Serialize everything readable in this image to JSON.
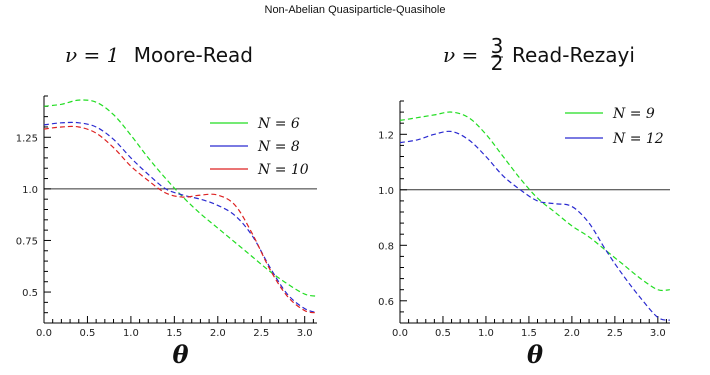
{
  "figure_title": "Non-Abelian Quasiparticle-Quasihole",
  "chart_data": [
    {
      "type": "line",
      "title": "ν = 1 Moore-Read",
      "title_math": "ν = 1",
      "title_text": "Moore-Read",
      "xlabel": "θ",
      "ylabel": "",
      "xlim": [
        0,
        3.14159
      ],
      "ylim": [
        0.35,
        1.45
      ],
      "xticks": [
        0.0,
        0.5,
        1.0,
        1.5,
        2.0,
        2.5,
        3.0
      ],
      "xtick_labels": [
        "0.0",
        "0.5",
        "1.0",
        "1.5",
        "2.0",
        "2.5",
        "3.0"
      ],
      "yticks": [
        0.5,
        0.75,
        1.0,
        1.25
      ],
      "ytick_labels": [
        "0.5",
        "0.75",
        "1.0",
        "1.25"
      ],
      "reference_line": 1.0,
      "legend_position": "top-right",
      "series": [
        {
          "name": "N = 6",
          "color": "#22dd22",
          "x": [
            0.0,
            0.2,
            0.4,
            0.6,
            0.8,
            1.0,
            1.2,
            1.4,
            1.6,
            1.8,
            2.0,
            2.2,
            2.4,
            2.6,
            2.8,
            3.0,
            3.14
          ],
          "y": [
            1.4,
            1.41,
            1.43,
            1.42,
            1.36,
            1.26,
            1.15,
            1.05,
            0.96,
            0.88,
            0.81,
            0.74,
            0.67,
            0.6,
            0.54,
            0.49,
            0.48
          ]
        },
        {
          "name": "N = 8",
          "color": "#2a2ad0",
          "x": [
            0.0,
            0.2,
            0.4,
            0.6,
            0.8,
            1.0,
            1.2,
            1.4,
            1.6,
            1.8,
            2.0,
            2.2,
            2.4,
            2.6,
            2.8,
            3.0,
            3.14
          ],
          "y": [
            1.31,
            1.32,
            1.32,
            1.3,
            1.24,
            1.15,
            1.07,
            1.0,
            0.97,
            0.95,
            0.92,
            0.87,
            0.77,
            0.62,
            0.49,
            0.42,
            0.4
          ]
        },
        {
          "name": "N = 10",
          "color": "#dd2222",
          "x": [
            0.0,
            0.2,
            0.4,
            0.6,
            0.8,
            1.0,
            1.2,
            1.4,
            1.6,
            1.8,
            2.0,
            2.2,
            2.4,
            2.6,
            2.8,
            3.0,
            3.14
          ],
          "y": [
            1.29,
            1.3,
            1.3,
            1.27,
            1.2,
            1.11,
            1.04,
            0.98,
            0.96,
            0.97,
            0.97,
            0.92,
            0.78,
            0.61,
            0.48,
            0.41,
            0.4
          ]
        }
      ]
    },
    {
      "type": "line",
      "title": "ν = 3/2 Read-Rezayi",
      "title_math": "ν =",
      "title_frac_num": "3",
      "title_frac_den": "2",
      "title_text": "Read-Rezayi",
      "xlabel": "θ",
      "ylabel": "",
      "xlim": [
        0,
        3.14159
      ],
      "ylim": [
        0.52,
        1.32
      ],
      "xticks": [
        0.0,
        0.5,
        1.0,
        1.5,
        2.0,
        2.5,
        3.0
      ],
      "xtick_labels": [
        "0.0",
        "0.5",
        "1.0",
        "1.5",
        "2.0",
        "2.5",
        "3.0"
      ],
      "yticks": [
        0.6,
        0.8,
        1.0,
        1.2
      ],
      "ytick_labels": [
        "0.6",
        "0.8",
        "1.0",
        "1.2"
      ],
      "reference_line": 1.0,
      "legend_position": "top-right",
      "series": [
        {
          "name": "N = 9",
          "color": "#22dd22",
          "x": [
            0.0,
            0.2,
            0.4,
            0.6,
            0.8,
            1.0,
            1.2,
            1.4,
            1.6,
            1.8,
            2.0,
            2.2,
            2.4,
            2.6,
            2.8,
            3.0,
            3.14
          ],
          "y": [
            1.25,
            1.26,
            1.27,
            1.28,
            1.26,
            1.2,
            1.12,
            1.04,
            0.97,
            0.92,
            0.87,
            0.83,
            0.78,
            0.73,
            0.68,
            0.64,
            0.64
          ]
        },
        {
          "name": "N = 12",
          "color": "#2a2ad0",
          "x": [
            0.0,
            0.2,
            0.4,
            0.6,
            0.8,
            1.0,
            1.2,
            1.4,
            1.6,
            1.8,
            2.0,
            2.2,
            2.4,
            2.6,
            2.8,
            3.0,
            3.14
          ],
          "y": [
            1.17,
            1.18,
            1.2,
            1.21,
            1.18,
            1.12,
            1.05,
            1.0,
            0.96,
            0.95,
            0.94,
            0.88,
            0.78,
            0.69,
            0.61,
            0.54,
            0.53
          ]
        }
      ]
    }
  ]
}
